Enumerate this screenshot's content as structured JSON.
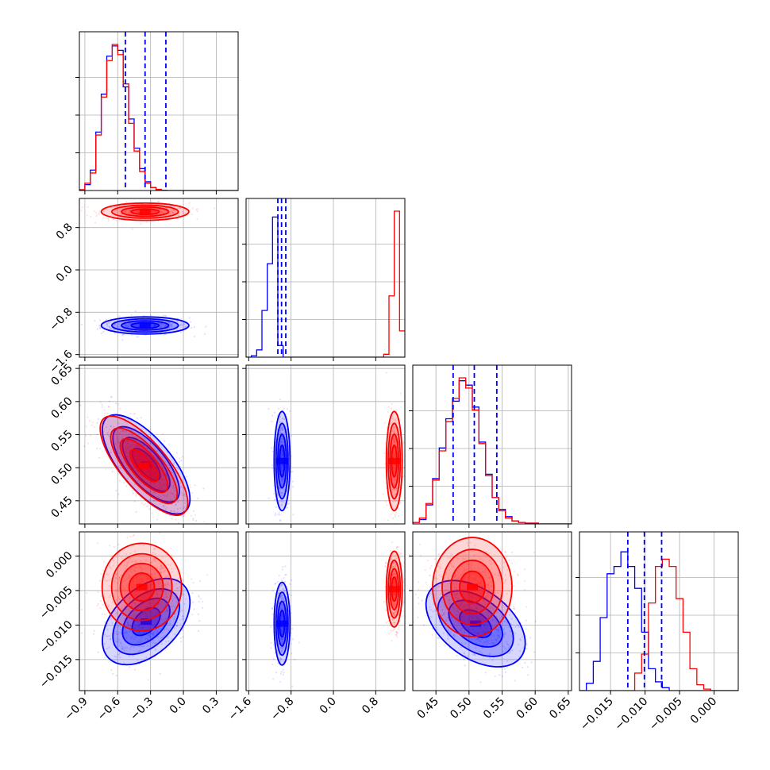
{
  "chart_data": {
    "type": "corner",
    "series": [
      {
        "name": "",
        "color": "#0000ff"
      },
      {
        "name": "",
        "color": "#ff0000"
      }
    ],
    "params": [
      {
        "range": [
          -0.95,
          0.5
        ],
        "ticks": [
          -0.9,
          -0.6,
          -0.3,
          0.0,
          0.3
        ],
        "tick_labels": [
          "−0.9",
          "−0.6",
          "−0.3",
          "0.0",
          "0.3"
        ]
      },
      {
        "range": [
          -1.65,
          1.35
        ],
        "ticks": [
          -1.6,
          -0.8,
          0.0,
          0.8
        ],
        "tick_labels": [
          "−1.6",
          "−0.8",
          "0.0",
          "0.8"
        ]
      },
      {
        "range": [
          0.415,
          0.655
        ],
        "ticks": [
          0.45,
          0.5,
          0.55,
          0.6,
          0.65
        ],
        "tick_labels": [
          "0.45",
          "0.50",
          "0.55",
          "0.60",
          "0.65"
        ]
      },
      {
        "range": [
          -0.0195,
          0.0035
        ],
        "ticks": [
          -0.015,
          -0.01,
          -0.005,
          0.0
        ],
        "tick_labels": [
          "−0.015",
          "−0.010",
          "−0.005",
          "0.000"
        ]
      }
    ],
    "diagonal": [
      {
        "blue_hist": {
          "x0": -0.95,
          "dx": 0.05,
          "counts": [
            0.5,
            4,
            14,
            40,
            66,
            92,
            99,
            96,
            71,
            49,
            29,
            15,
            6,
            2,
            0.5,
            0.2,
            0,
            0,
            0,
            0,
            0,
            0,
            0,
            0,
            0,
            0,
            0,
            0,
            0
          ]
        },
        "red_hist": {
          "x0": -0.95,
          "dx": 0.05,
          "counts": [
            0.5,
            5,
            12,
            38,
            64,
            89,
            100,
            93,
            73,
            46,
            27,
            13,
            5,
            2,
            0.8,
            0.2,
            0,
            0,
            0,
            0,
            0,
            0,
            0,
            0,
            0,
            0,
            0,
            0,
            0
          ]
        },
        "quantiles": [
          -0.53,
          -0.35,
          -0.16
        ]
      },
      {
        "blue_hist": {
          "x0": -1.65,
          "dx": 0.1,
          "counts": [
            0,
            1,
            5,
            32,
            64,
            96,
            8,
            0,
            0,
            0,
            0,
            0,
            0,
            0,
            0,
            0,
            0,
            0,
            0,
            0,
            0,
            0,
            0,
            0,
            0,
            0,
            0,
            0,
            0,
            0
          ]
        },
        "red_hist": {
          "x0": -1.65,
          "dx": 0.1,
          "counts": [
            0,
            0,
            0,
            0,
            0,
            0,
            0,
            0,
            0,
            0,
            0,
            0,
            0,
            0,
            0,
            0,
            0,
            0,
            0,
            0,
            0,
            0,
            0,
            0,
            0,
            0,
            2,
            42,
            100,
            18
          ]
        },
        "quantiles": [
          -1.05,
          -0.98,
          -0.9
        ]
      },
      {
        "blue_hist": {
          "x0": 0.415,
          "dx": 0.01,
          "counts": [
            1,
            3,
            13,
            31,
            52,
            72,
            84,
            98,
            95,
            80,
            56,
            34,
            18,
            10,
            5,
            2,
            1,
            0.5,
            0.5,
            0,
            0,
            0,
            0,
            0
          ]
        },
        "red_hist": {
          "x0": 0.415,
          "dx": 0.01,
          "counts": [
            1,
            4,
            14,
            30,
            50,
            70,
            86,
            100,
            93,
            78,
            55,
            33,
            18,
            9,
            4,
            2,
            1,
            0.5,
            0.5,
            0,
            0,
            0,
            0,
            0
          ]
        },
        "quantiles": [
          0.476,
          0.508,
          0.542
        ]
      },
      {
        "blue_hist": {
          "x0": -0.0195,
          "dx": 0.001,
          "counts": [
            0,
            5,
            20,
            50,
            80,
            85,
            95,
            85,
            70,
            40,
            15,
            6,
            2,
            0,
            0,
            0,
            0,
            0,
            0,
            0,
            0,
            0,
            0
          ]
        },
        "red_hist": {
          "x0": -0.0195,
          "dx": 0.001,
          "counts": [
            0,
            0,
            0,
            0,
            0,
            0,
            0,
            0,
            12,
            25,
            60,
            85,
            90,
            85,
            63,
            40,
            15,
            4,
            1,
            0,
            0,
            0,
            0
          ]
        },
        "quantiles": [
          -0.0125,
          -0.0101,
          -0.0076
        ]
      }
    ],
    "blobs": [
      {
        "row": 1,
        "col": 0,
        "series": 0,
        "center": [
          -0.35,
          -1.05
        ],
        "sx": 0.16,
        "sy": 0.065,
        "rho": 0
      },
      {
        "row": 1,
        "col": 0,
        "series": 1,
        "center": [
          -0.35,
          1.1
        ],
        "sx": 0.16,
        "sy": 0.065,
        "rho": 0
      },
      {
        "row": 2,
        "col": 0,
        "series": 0,
        "center": [
          -0.34,
          0.505
        ],
        "sx": 0.16,
        "sy": 0.03,
        "rho": -0.7
      },
      {
        "row": 2,
        "col": 0,
        "series": 1,
        "center": [
          -0.36,
          0.503
        ],
        "sx": 0.16,
        "sy": 0.03,
        "rho": -0.75
      },
      {
        "row": 2,
        "col": 1,
        "series": 0,
        "center": [
          -0.97,
          0.51
        ],
        "sx": 0.06,
        "sy": 0.03,
        "rho": 0
      },
      {
        "row": 2,
        "col": 1,
        "series": 1,
        "center": [
          1.15,
          0.51
        ],
        "sx": 0.06,
        "sy": 0.03,
        "rho": 0
      },
      {
        "row": 3,
        "col": 0,
        "series": 0,
        "center": [
          -0.34,
          -0.0095
        ],
        "sx": 0.16,
        "sy": 0.0025,
        "rho": 0.45
      },
      {
        "row": 3,
        "col": 0,
        "series": 1,
        "center": [
          -0.38,
          -0.0045
        ],
        "sx": 0.16,
        "sy": 0.0023,
        "rho": 0
      },
      {
        "row": 3,
        "col": 1,
        "series": 0,
        "center": [
          -0.97,
          -0.0098
        ],
        "sx": 0.06,
        "sy": 0.0024,
        "rho": 0
      },
      {
        "row": 3,
        "col": 1,
        "series": 1,
        "center": [
          1.15,
          -0.0048
        ],
        "sx": 0.06,
        "sy": 0.0022,
        "rho": 0
      },
      {
        "row": 3,
        "col": 2,
        "series": 0,
        "center": [
          0.51,
          -0.0098
        ],
        "sx": 0.03,
        "sy": 0.0025,
        "rho": -0.45
      },
      {
        "row": 3,
        "col": 2,
        "series": 1,
        "center": [
          0.505,
          -0.0045
        ],
        "sx": 0.03,
        "sy": 0.0023,
        "rho": 0
      }
    ]
  }
}
